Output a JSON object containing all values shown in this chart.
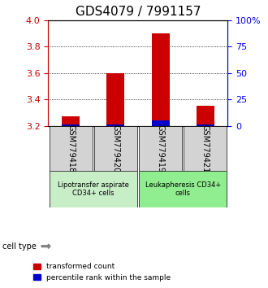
{
  "title": "GDS4079 / 7991157",
  "samples": [
    "GSM779418",
    "GSM779420",
    "GSM779419",
    "GSM779421"
  ],
  "red_values": [
    3.27,
    3.6,
    3.9,
    3.35
  ],
  "blue_values": [
    3.21,
    3.21,
    3.24,
    3.21
  ],
  "baseline": 3.2,
  "ylim": [
    3.2,
    4.0
  ],
  "yticks_left": [
    3.2,
    3.4,
    3.6,
    3.8,
    4.0
  ],
  "yticks_right": [
    0,
    25,
    50,
    75,
    100
  ],
  "yticks_right_labels": [
    "0",
    "25",
    "50",
    "75",
    "100%"
  ],
  "grid_values": [
    3.4,
    3.6,
    3.8
  ],
  "cell_type_label": "cell type",
  "group1_label": "Lipotransfer aspirate\nCD34+ cells",
  "group2_label": "Leukapheresis CD34+\ncells",
  "group1_color": "#c8eec8",
  "group2_color": "#90ee90",
  "sample_box_color": "#d3d3d3",
  "red_color": "#cc0000",
  "blue_color": "#0000cc",
  "legend_red_label": "transformed count",
  "legend_blue_label": "percentile rank within the sample",
  "bar_width": 0.4,
  "title_fontsize": 11,
  "tick_fontsize": 8,
  "sample_fontsize": 7
}
